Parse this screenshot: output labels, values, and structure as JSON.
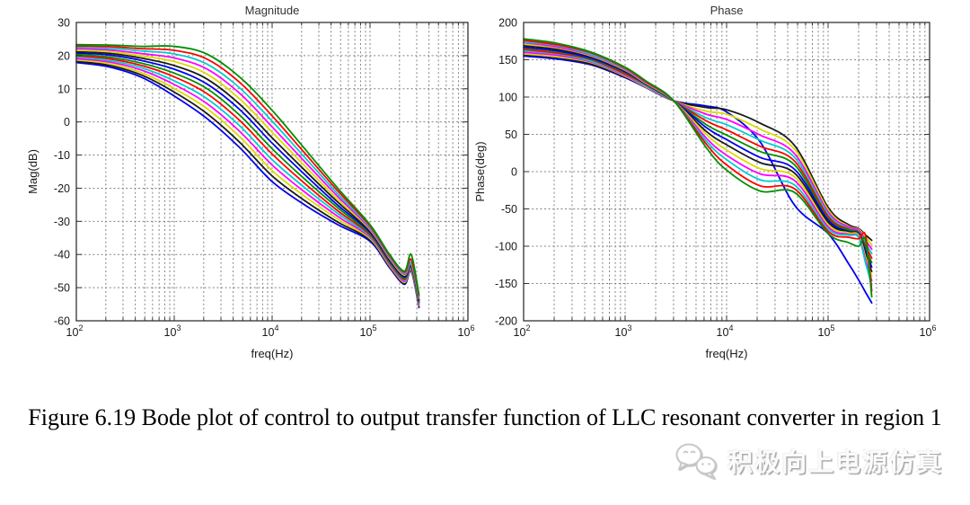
{
  "caption": "Figure 6.19 Bode plot of control to output transfer function of LLC resonant converter in region 1",
  "watermark": {
    "text": "积极向上电源仿真",
    "icon": "wechat-icon",
    "text_color": "#fbfbfb",
    "shadow_color": "#a8a8a8"
  },
  "style": {
    "grid_color": "#828282",
    "frame_color": "#333333",
    "text_color": "#1a1a1a",
    "background": "#ffffff"
  },
  "chart_data": [
    {
      "id": "magnitude-plot",
      "type": "line",
      "title": "Magnitude",
      "xlabel": "freq(Hz)",
      "ylabel": "Mag(dB)",
      "x_scale": "log",
      "xlim_log": [
        2,
        6
      ],
      "xticks_exp": [
        2,
        3,
        4,
        5,
        6
      ],
      "ylim": [
        -60,
        30
      ],
      "yticks": [
        30,
        20,
        10,
        0,
        -10,
        -20,
        -30,
        -40,
        -50,
        -60
      ],
      "grid": "on",
      "legend": "none",
      "x_log": [
        2,
        2.33,
        2.67,
        3,
        3.33,
        3.67,
        4,
        4.33,
        4.67,
        5,
        5.2,
        5.35,
        5.42,
        5.5
      ],
      "series": [
        {
          "name": "curve-01",
          "color": "#0000ee",
          "values": [
            17.9,
            16.6,
            13.4,
            7.8,
            1.1,
            -7.8,
            -18,
            -25,
            -31,
            -36,
            -44,
            -49,
            -45,
            -56
          ]
        },
        {
          "name": "curve-02",
          "color": "#1a1a1a",
          "values": [
            18.3,
            17.1,
            14.1,
            9,
            2.6,
            -6.2,
            -16.3,
            -23.7,
            -30.2,
            -35.6,
            -43.7,
            -48.7,
            -44.8,
            -55.7
          ]
        },
        {
          "name": "curve-03",
          "color": "#d9d900",
          "values": [
            18.7,
            17.6,
            14.8,
            10.1,
            4.1,
            -4.5,
            -14.7,
            -22.4,
            -29.3,
            -35.2,
            -43.4,
            -48.4,
            -44.5,
            -55.4
          ]
        },
        {
          "name": "curve-04",
          "color": "#ff00ff",
          "values": [
            19.1,
            18.1,
            15.6,
            11.3,
            5.6,
            -2.9,
            -13,
            -21.1,
            -28.5,
            -34.8,
            -43.1,
            -48.1,
            -44.3,
            -55.1
          ]
        },
        {
          "name": "curve-05",
          "color": "#00cccc",
          "values": [
            19.6,
            18.6,
            16.3,
            12.4,
            7.1,
            -1.2,
            -11.4,
            -19.8,
            -27.6,
            -34.5,
            -42.8,
            -47.8,
            -44.1,
            -54.8
          ]
        },
        {
          "name": "curve-06",
          "color": "#ff0000",
          "values": [
            20,
            19.1,
            17,
            13.6,
            8.6,
            0.4,
            -9.7,
            -18.5,
            -26.8,
            -34.1,
            -42.5,
            -47.5,
            -43.8,
            -54.5
          ]
        },
        {
          "name": "curve-07",
          "color": "#008f00",
          "values": [
            20.4,
            19.6,
            17.7,
            14.7,
            10.1,
            2,
            -8.1,
            -17.2,
            -25.9,
            -33.7,
            -42.2,
            -47.2,
            -43.6,
            -54.2
          ]
        },
        {
          "name": "curve-08",
          "color": "#0000ee",
          "values": [
            20.8,
            20.2,
            18.5,
            15.9,
            11.5,
            3.7,
            -6.4,
            -15.8,
            -25.1,
            -33.3,
            -41.8,
            -46.8,
            -43.4,
            -53.8
          ]
        },
        {
          "name": "curve-09",
          "color": "#1a1a1a",
          "values": [
            21.2,
            20.7,
            19.2,
            17,
            13,
            5.3,
            -4.8,
            -14.5,
            -24.2,
            -32.9,
            -41.5,
            -46.5,
            -43.2,
            -53.5
          ]
        },
        {
          "name": "curve-10",
          "color": "#d9d900",
          "values": [
            21.6,
            21.2,
            19.9,
            18.2,
            14.5,
            6.9,
            -3.1,
            -13.2,
            -23.4,
            -32.5,
            -41.2,
            -46.2,
            -42.9,
            -53.2
          ]
        },
        {
          "name": "curve-11",
          "color": "#ff00ff",
          "values": [
            22.1,
            21.7,
            20.6,
            19.3,
            16,
            8.6,
            -1.5,
            -11.9,
            -22.5,
            -32.2,
            -40.9,
            -45.9,
            -42.7,
            -52.9
          ]
        },
        {
          "name": "curve-12",
          "color": "#00cccc",
          "values": [
            22.5,
            22.2,
            21.4,
            20.5,
            17.5,
            10.2,
            0.2,
            -10.6,
            -21.7,
            -31.8,
            -40.6,
            -45.6,
            -42.5,
            -52.6
          ]
        },
        {
          "name": "curve-13",
          "color": "#ff0000",
          "values": [
            22.9,
            22.7,
            22.1,
            21.6,
            19,
            11.9,
            1.8,
            -9.3,
            -20.8,
            -31.4,
            -40.3,
            -45.3,
            -41.5,
            -52.3
          ]
        },
        {
          "name": "curve-14",
          "color": "#008f00",
          "values": [
            23.3,
            23.2,
            22.8,
            22.8,
            20.5,
            13.5,
            3.5,
            -8,
            -20,
            -31,
            -40,
            -45,
            -40,
            -52
          ]
        }
      ]
    },
    {
      "id": "phase-plot",
      "type": "line",
      "title": "Phase",
      "xlabel": "freq(Hz)",
      "ylabel": "Phase(deg)",
      "x_scale": "log",
      "xlim_log": [
        2,
        6
      ],
      "xticks_exp": [
        2,
        3,
        4,
        5,
        6
      ],
      "ylim": [
        -200,
        200
      ],
      "yticks": [
        200,
        150,
        100,
        50,
        0,
        -50,
        -100,
        -150,
        -200
      ],
      "grid": "on",
      "legend": "none",
      "crossover_annotation": {
        "freq_hz": 3000,
        "phase_deg": 95
      },
      "x_log": [
        2,
        2.33,
        2.67,
        3,
        3.2,
        3.48,
        3.8,
        4,
        4.33,
        4.67,
        5,
        5.2,
        5.3,
        5.37,
        5.43
      ],
      "series": [
        {
          "name": "curve-01",
          "color": "#0000ee",
          "values": [
            155,
            151,
            143,
            126,
            113,
            95,
            88,
            80,
            40,
            -45,
            -83,
            -123,
            -145,
            -162,
            -176
          ]
        },
        {
          "name": "curve-02",
          "color": "#1a1a1a",
          "values": [
            157,
            153,
            144,
            127,
            114,
            95,
            86,
            83,
            65,
            35,
            -48,
            -71,
            -76,
            -85,
            -92
          ]
        },
        {
          "name": "curve-03",
          "color": "#d9d900",
          "values": [
            158,
            154,
            146,
            128,
            114,
            95,
            81,
            77,
            57,
            30,
            -51,
            -73,
            -77,
            -88,
            -98
          ]
        },
        {
          "name": "curve-04",
          "color": "#ff00ff",
          "values": [
            160,
            156,
            147,
            129,
            115,
            95,
            77,
            70,
            49,
            24,
            -54,
            -74,
            -78,
            -92,
            -104
          ]
        },
        {
          "name": "curve-05",
          "color": "#00cccc",
          "values": [
            162,
            158,
            148,
            130,
            116,
            95,
            72,
            63,
            42,
            19,
            -57,
            -76,
            -80,
            -96,
            -110
          ]
        },
        {
          "name": "curve-06",
          "color": "#ff0000",
          "values": [
            164,
            159,
            150,
            131,
            117,
            95,
            68,
            56,
            34,
            14,
            -60,
            -77,
            -81,
            -100,
            -116
          ]
        },
        {
          "name": "curve-07",
          "color": "#008f00",
          "values": [
            166,
            161,
            151,
            133,
            117,
            95,
            63,
            49,
            27,
            9,
            -63,
            -78,
            -82,
            -104,
            -122
          ]
        },
        {
          "name": "curve-08",
          "color": "#0000ee",
          "values": [
            167,
            162,
            152,
            134,
            118,
            95,
            59,
            43,
            19,
            3,
            -65,
            -80,
            -83,
            -107,
            -128
          ]
        },
        {
          "name": "curve-09",
          "color": "#1a1a1a",
          "values": [
            169,
            164,
            154,
            135,
            119,
            95,
            54,
            36,
            12,
            -2,
            -68,
            -81,
            -84,
            -111,
            -134
          ]
        },
        {
          "name": "curve-10",
          "color": "#d9d900",
          "values": [
            171,
            166,
            155,
            136,
            119,
            95,
            50,
            29,
            4,
            -7,
            -71,
            -82,
            -85,
            -115,
            -140
          ]
        },
        {
          "name": "curve-11",
          "color": "#ff00ff",
          "values": [
            173,
            167,
            156,
            137,
            120,
            95,
            45,
            22,
            -3,
            -12,
            -74,
            -84,
            -87,
            -119,
            -146
          ]
        },
        {
          "name": "curve-12",
          "color": "#00cccc",
          "values": [
            174,
            169,
            157,
            138,
            121,
            95,
            41,
            16,
            -11,
            -18,
            -77,
            -85,
            -88,
            -123,
            -152
          ]
        },
        {
          "name": "curve-13",
          "color": "#ff0000",
          "values": [
            176,
            170,
            159,
            139,
            121,
            95,
            37,
            9,
            -19,
            -23,
            -80,
            -88,
            -90,
            -86,
            -160
          ]
        },
        {
          "name": "curve-14",
          "color": "#008f00",
          "values": [
            178,
            172,
            160,
            140,
            122,
            95,
            32,
            2,
            -26,
            -28,
            -83,
            -95,
            -100,
            -92,
            -168
          ]
        }
      ]
    }
  ]
}
